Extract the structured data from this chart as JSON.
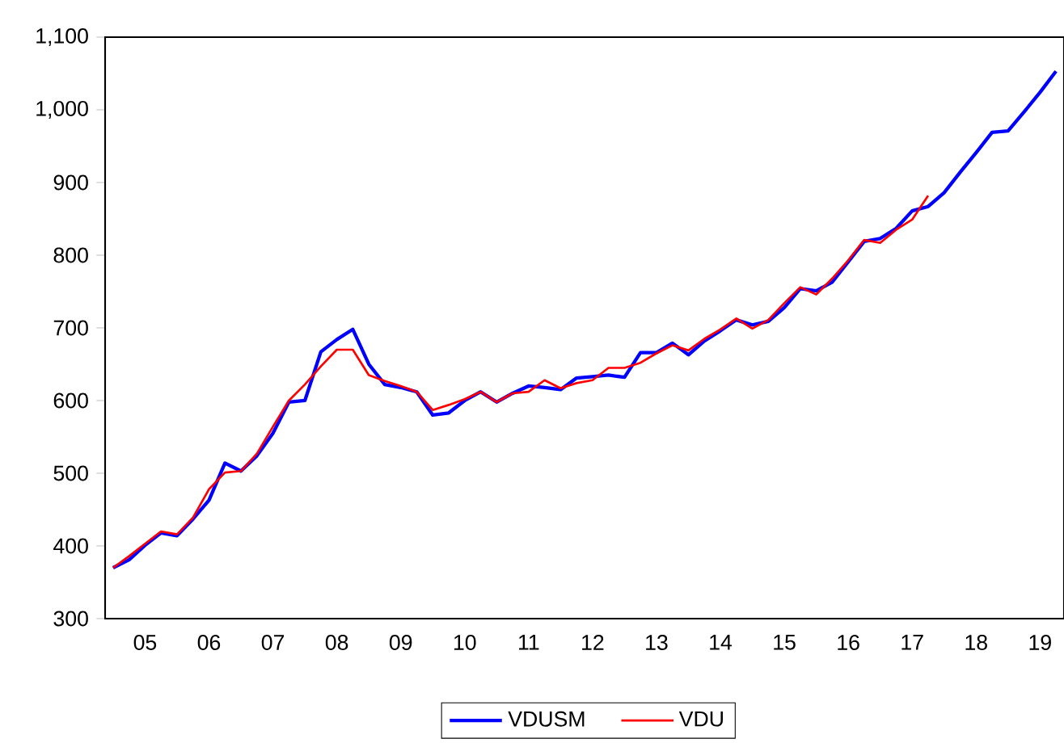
{
  "chart_data": {
    "type": "line",
    "categories": [
      null,
      null,
      "05",
      null,
      null,
      null,
      "06",
      null,
      null,
      null,
      "07",
      null,
      null,
      null,
      "08",
      null,
      null,
      null,
      "09",
      null,
      null,
      null,
      "10",
      null,
      null,
      null,
      "11",
      null,
      null,
      null,
      "12",
      null,
      null,
      null,
      "13",
      null,
      null,
      null,
      "14",
      null,
      null,
      null,
      "15",
      null,
      null,
      null,
      "16",
      null,
      null,
      null,
      "17",
      null,
      null,
      null,
      "18",
      null,
      null,
      null,
      "19",
      null
    ],
    "series": [
      {
        "name": "VDUSM",
        "color": "#0000ff",
        "values": [
          370,
          381,
          401,
          418,
          414,
          437,
          463,
          514,
          503,
          524,
          555,
          598,
          600,
          667,
          684,
          698,
          650,
          622,
          618,
          612,
          580,
          583,
          600,
          612,
          598,
          610,
          620,
          618,
          615,
          631,
          633,
          635,
          632,
          666,
          666,
          679,
          663,
          682,
          696,
          711,
          704,
          709,
          728,
          754,
          751,
          763,
          791,
          819,
          823,
          837,
          861,
          867,
          886,
          914,
          941,
          969,
          971,
          997,
          1024,
          1053
        ]
      },
      {
        "name": "VDU",
        "color": "#ff0000",
        "values": [
          370,
          386,
          403,
          420,
          416,
          439,
          478,
          501,
          503,
          527,
          564,
          600,
          622,
          647,
          670,
          670,
          635,
          627,
          620,
          612,
          587,
          594,
          602,
          612,
          598,
          610,
          612,
          628,
          617,
          624,
          628,
          645,
          645,
          652,
          665,
          676,
          669,
          685,
          698,
          713,
          699,
          711,
          734,
          756,
          746,
          768,
          793,
          821,
          817,
          835,
          849,
          882,
          null,
          null,
          null,
          null,
          null,
          null,
          null,
          null
        ]
      }
    ],
    "ylim": [
      300,
      1100
    ],
    "yticks": [
      300,
      400,
      500,
      600,
      700,
      800,
      900,
      {
        "value": 1000,
        "label": "1,000"
      },
      {
        "value": 1100,
        "label": "1,100"
      }
    ],
    "grid": false,
    "legend": "bottom"
  }
}
